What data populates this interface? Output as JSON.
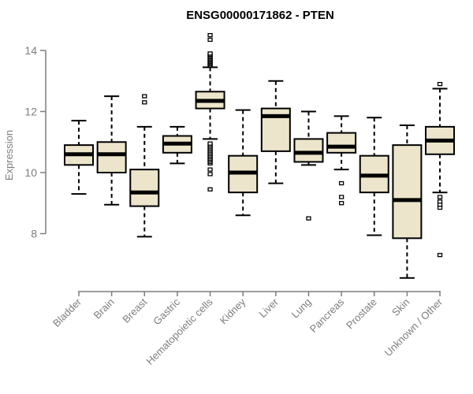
{
  "chart_data": {
    "type": "boxplot",
    "title": "ENSG00000171862 - PTEN",
    "ylabel": "Expression",
    "xlabel": "",
    "yticks": [
      8,
      10,
      12,
      14
    ],
    "ylim": [
      6.3,
      14.8
    ],
    "grid": false,
    "legend": null,
    "colors": {
      "box_fill": "#ECE5CB",
      "box_stroke": "#000000",
      "median": "#000000",
      "whisker": "#000000",
      "axis": "#7d7d7d",
      "tick_text": "#7d7d7d",
      "title_text": "#000000",
      "background": "#ffffff"
    },
    "categories": [
      "Bladder",
      "Brain",
      "Breast",
      "Gastric",
      "Hematopoietic cells",
      "Kidney",
      "Liver",
      "Lung",
      "Pancreas",
      "Prostate",
      "Skin",
      "Unknown / Other"
    ],
    "series": [
      {
        "name": "Bladder",
        "whislo": 9.3,
        "q1": 10.25,
        "med": 10.6,
        "q3": 10.9,
        "whishi": 11.7,
        "outliers": []
      },
      {
        "name": "Brain",
        "whislo": 8.95,
        "q1": 10.0,
        "med": 10.6,
        "q3": 11.0,
        "whishi": 12.5,
        "outliers": []
      },
      {
        "name": "Breast",
        "whislo": 7.9,
        "q1": 8.9,
        "med": 9.35,
        "q3": 10.1,
        "whishi": 11.5,
        "outliers": [
          12.3,
          12.5
        ]
      },
      {
        "name": "Gastric",
        "whislo": 10.3,
        "q1": 10.65,
        "med": 10.95,
        "q3": 11.2,
        "whishi": 11.5,
        "outliers": []
      },
      {
        "name": "Hematopoietic cells",
        "whislo": 11.1,
        "q1": 12.1,
        "med": 12.35,
        "q3": 12.65,
        "whishi": 13.45,
        "outliers": [
          9.45,
          9.95,
          10.1,
          10.3,
          10.35,
          10.4,
          10.45,
          10.5,
          10.55,
          10.6,
          10.65,
          10.7,
          10.75,
          10.8,
          10.85,
          10.9,
          10.95,
          13.5,
          13.54,
          13.58,
          13.62,
          13.66,
          13.7,
          13.74,
          13.78,
          13.82,
          13.86,
          13.9,
          14.35,
          14.5
        ]
      },
      {
        "name": "Kidney",
        "whislo": 8.6,
        "q1": 9.35,
        "med": 10.0,
        "q3": 10.55,
        "whishi": 12.05,
        "outliers": []
      },
      {
        "name": "Liver",
        "whislo": 9.65,
        "q1": 10.7,
        "med": 11.85,
        "q3": 12.1,
        "whishi": 13.0,
        "outliers": []
      },
      {
        "name": "Lung",
        "whislo": 10.25,
        "q1": 10.35,
        "med": 10.65,
        "q3": 11.1,
        "whishi": 12.0,
        "outliers": [
          8.5
        ]
      },
      {
        "name": "Pancreas",
        "whislo": 10.1,
        "q1": 10.65,
        "med": 10.85,
        "q3": 11.3,
        "whishi": 11.85,
        "outliers": [
          9.0,
          9.2,
          9.65
        ]
      },
      {
        "name": "Prostate",
        "whislo": 7.95,
        "q1": 9.35,
        "med": 9.9,
        "q3": 10.55,
        "whishi": 11.8,
        "outliers": []
      },
      {
        "name": "Skin",
        "whislo": 6.55,
        "q1": 7.85,
        "med": 9.1,
        "q3": 10.9,
        "whishi": 11.55,
        "outliers": []
      },
      {
        "name": "Unknown / Other",
        "whislo": 9.35,
        "q1": 10.6,
        "med": 11.05,
        "q3": 11.5,
        "whishi": 12.75,
        "outliers": [
          7.3,
          8.85,
          8.95,
          9.05,
          9.2,
          12.9
        ]
      }
    ]
  }
}
